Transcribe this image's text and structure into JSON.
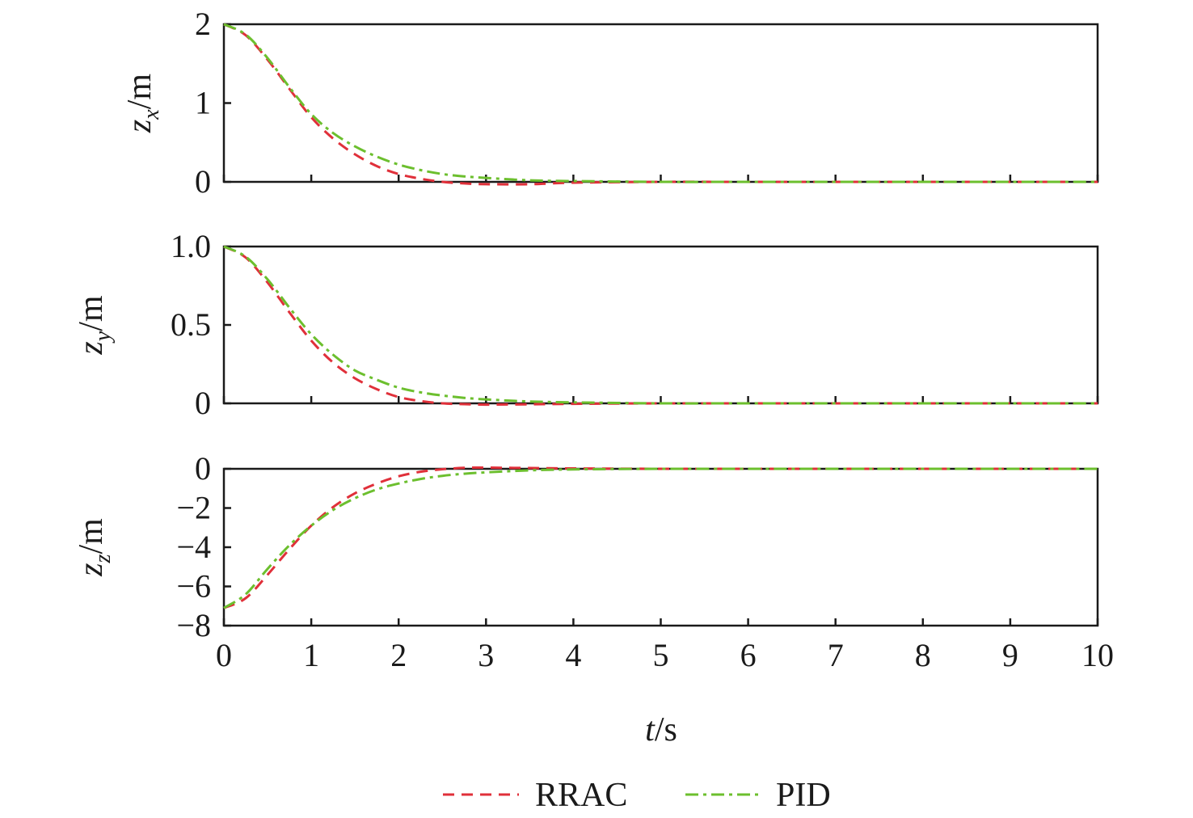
{
  "colors": {
    "RRAC": "#e0303a",
    "PID": "#6cbf2e",
    "axis": "#1a1a1a"
  },
  "legend": {
    "placement": "bottom-center",
    "items": [
      "RRAC",
      "PID"
    ]
  },
  "xlabel": {
    "main": "t",
    "unit": "/s"
  },
  "chart_data": [
    {
      "type": "line",
      "ylabel": {
        "main": "z",
        "sub": "x",
        "unit": "/m"
      },
      "xlim": [
        0,
        10
      ],
      "ylim": [
        0,
        2
      ],
      "yticks": [
        0,
        1,
        2
      ],
      "ytick_labels": [
        "0",
        "1",
        "2"
      ],
      "xticks": [
        0,
        1,
        2,
        3,
        4,
        5,
        6,
        7,
        8,
        9,
        10
      ],
      "x": [
        0,
        0.25,
        0.5,
        0.75,
        1,
        1.25,
        1.5,
        1.75,
        2,
        2.25,
        2.5,
        2.75,
        3,
        3.5,
        4,
        5,
        6,
        7,
        8,
        9,
        10
      ],
      "series": [
        {
          "name": "RRAC",
          "style": "dashed",
          "values": [
            2.0,
            1.86,
            1.55,
            1.18,
            0.82,
            0.55,
            0.35,
            0.2,
            0.1,
            0.04,
            0.0,
            -0.02,
            -0.03,
            -0.03,
            -0.01,
            0.0,
            0.0,
            0.0,
            0.0,
            0.0,
            0.0
          ]
        },
        {
          "name": "PID",
          "style": "dash-dot",
          "values": [
            2.0,
            1.87,
            1.57,
            1.2,
            0.86,
            0.62,
            0.45,
            0.32,
            0.22,
            0.15,
            0.1,
            0.07,
            0.05,
            0.02,
            0.01,
            0.0,
            0.0,
            0.0,
            0.0,
            0.0,
            0.0
          ]
        }
      ]
    },
    {
      "type": "line",
      "ylabel": {
        "main": "z",
        "sub": "y",
        "unit": "/m"
      },
      "xlim": [
        0,
        10
      ],
      "ylim": [
        0,
        1.0
      ],
      "yticks": [
        0,
        0.5,
        1.0
      ],
      "ytick_labels": [
        "0",
        "0.5",
        "1.0"
      ],
      "xticks": [
        0,
        1,
        2,
        3,
        4,
        5,
        6,
        7,
        8,
        9,
        10
      ],
      "x": [
        0,
        0.25,
        0.5,
        0.75,
        1,
        1.25,
        1.5,
        1.75,
        2,
        2.25,
        2.5,
        2.75,
        3,
        3.5,
        4,
        5,
        6,
        7,
        8,
        9,
        10
      ],
      "series": [
        {
          "name": "RRAC",
          "style": "dashed",
          "values": [
            1.0,
            0.93,
            0.77,
            0.58,
            0.4,
            0.26,
            0.16,
            0.09,
            0.04,
            0.015,
            0.0,
            -0.005,
            -0.008,
            -0.006,
            -0.003,
            0.0,
            0.0,
            0.0,
            0.0,
            0.0,
            0.0
          ]
        },
        {
          "name": "PID",
          "style": "dash-dot",
          "values": [
            1.0,
            0.935,
            0.79,
            0.61,
            0.44,
            0.31,
            0.21,
            0.15,
            0.1,
            0.07,
            0.05,
            0.035,
            0.025,
            0.012,
            0.006,
            0.0,
            0.0,
            0.0,
            0.0,
            0.0,
            0.0
          ]
        }
      ]
    },
    {
      "type": "line",
      "ylabel": {
        "main": "z",
        "sub": "z",
        "unit": "/m"
      },
      "xlim": [
        0,
        10
      ],
      "ylim": [
        -8,
        0
      ],
      "yticks": [
        -8,
        -6,
        -4,
        -2,
        0
      ],
      "ytick_labels": [
        "−8",
        "−6",
        "−4",
        "−2",
        "0"
      ],
      "xticks": [
        0,
        1,
        2,
        3,
        4,
        5,
        6,
        7,
        8,
        9,
        10
      ],
      "xtick_labels": [
        "0",
        "1",
        "2",
        "3",
        "4",
        "5",
        "6",
        "7",
        "8",
        "9",
        "10"
      ],
      "x": [
        0,
        0.25,
        0.5,
        0.75,
        1,
        1.25,
        1.5,
        1.75,
        2,
        2.25,
        2.5,
        2.75,
        3,
        3.5,
        4,
        5,
        6,
        7,
        8,
        9,
        10
      ],
      "series": [
        {
          "name": "RRAC",
          "style": "dashed",
          "values": [
            -7.1,
            -6.6,
            -5.4,
            -4.1,
            -2.9,
            -1.95,
            -1.25,
            -0.75,
            -0.38,
            -0.15,
            -0.02,
            0.05,
            0.06,
            0.04,
            0.02,
            0.0,
            0.0,
            0.0,
            0.0,
            0.0,
            0.0
          ]
        },
        {
          "name": "PID",
          "style": "dash-dot",
          "values": [
            -7.1,
            -6.4,
            -5.1,
            -3.9,
            -2.9,
            -2.1,
            -1.5,
            -1.05,
            -0.75,
            -0.52,
            -0.36,
            -0.25,
            -0.18,
            -0.08,
            -0.03,
            0.0,
            0.0,
            0.0,
            0.0,
            0.0,
            0.0
          ]
        }
      ]
    }
  ]
}
